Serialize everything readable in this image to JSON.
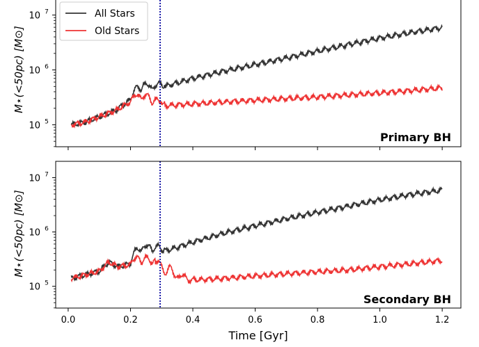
{
  "chart_data": [
    {
      "type": "line",
      "panel_label": "Primary BH",
      "xlabel": "",
      "ylabel": "M⋆(<50pc) [M⊙]",
      "xlim": [
        -0.04,
        1.26
      ],
      "ylim_log10": [
        4.6,
        7.3
      ],
      "y_scale": "log",
      "vline_x": 0.295,
      "legend_placement": "top-left",
      "x_ticks": [
        0.0,
        0.2,
        0.4,
        0.6,
        0.8,
        1.0,
        1.2
      ],
      "y_ticks": [
        {
          "value": 100000,
          "base": "10",
          "exp": "5"
        },
        {
          "value": 1000000,
          "base": "10",
          "exp": "6"
        },
        {
          "value": 10000000,
          "base": "10",
          "exp": "7"
        }
      ],
      "series": [
        {
          "name": "All Stars",
          "color": "#333333",
          "x": [
            0.01,
            0.05,
            0.1,
            0.15,
            0.2,
            0.22,
            0.24,
            0.26,
            0.28,
            0.3,
            0.35,
            0.4,
            0.5,
            0.6,
            0.7,
            0.8,
            0.9,
            1.0,
            1.1,
            1.2
          ],
          "y": [
            100000,
            110000,
            140000,
            180000,
            290000,
            380000,
            450000,
            430000,
            420000,
            480000,
            580000,
            700000,
            950000,
            1250000,
            1650000,
            2200000,
            2900000,
            3800000,
            4800000,
            5900000
          ]
        },
        {
          "name": "Old Stars",
          "color": "#ee3333",
          "x": [
            0.01,
            0.05,
            0.1,
            0.15,
            0.2,
            0.22,
            0.24,
            0.26,
            0.28,
            0.3,
            0.35,
            0.4,
            0.5,
            0.6,
            0.7,
            0.8,
            0.9,
            1.0,
            1.1,
            1.2
          ],
          "y": [
            100000,
            110000,
            140000,
            180000,
            260000,
            280000,
            290000,
            260000,
            230000,
            220000,
            230000,
            240000,
            260000,
            280000,
            300000,
            320000,
            350000,
            380000,
            420000,
            470000
          ]
        }
      ]
    },
    {
      "type": "line",
      "panel_label": "Secondary BH",
      "xlabel": "Time [Gyr]",
      "ylabel": "M⋆(<50pc) [M⊙]",
      "xlim": [
        -0.04,
        1.26
      ],
      "ylim_log10": [
        4.6,
        7.3
      ],
      "y_scale": "log",
      "vline_x": 0.295,
      "x_ticks": [
        0.0,
        0.2,
        0.4,
        0.6,
        0.8,
        1.0,
        1.2
      ],
      "y_ticks": [
        {
          "value": 100000,
          "base": "10",
          "exp": "5"
        },
        {
          "value": 1000000,
          "base": "10",
          "exp": "6"
        },
        {
          "value": 10000000,
          "base": "10",
          "exp": "7"
        }
      ],
      "series": [
        {
          "name": "All Stars",
          "color": "#333333",
          "x": [
            0.01,
            0.05,
            0.1,
            0.13,
            0.16,
            0.2,
            0.22,
            0.24,
            0.26,
            0.28,
            0.3,
            0.35,
            0.4,
            0.5,
            0.6,
            0.7,
            0.8,
            0.9,
            1.0,
            1.1,
            1.2
          ],
          "y": [
            140000,
            160000,
            190000,
            280000,
            230000,
            260000,
            400000,
            440000,
            450000,
            430000,
            430000,
            520000,
            650000,
            950000,
            1300000,
            1750000,
            2300000,
            3000000,
            3900000,
            4900000,
            5900000
          ]
        },
        {
          "name": "Old Stars",
          "color": "#ee3333",
          "x": [
            0.01,
            0.05,
            0.1,
            0.13,
            0.16,
            0.2,
            0.22,
            0.24,
            0.26,
            0.28,
            0.3,
            0.32,
            0.35,
            0.4,
            0.45,
            0.5,
            0.6,
            0.7,
            0.8,
            0.9,
            1.0,
            1.1,
            1.2
          ],
          "y": [
            140000,
            160000,
            190000,
            280000,
            230000,
            250000,
            270000,
            270000,
            260000,
            250000,
            230000,
            200000,
            160000,
            130000,
            135000,
            140000,
            155000,
            170000,
            185000,
            200000,
            230000,
            260000,
            300000
          ]
        }
      ]
    }
  ]
}
